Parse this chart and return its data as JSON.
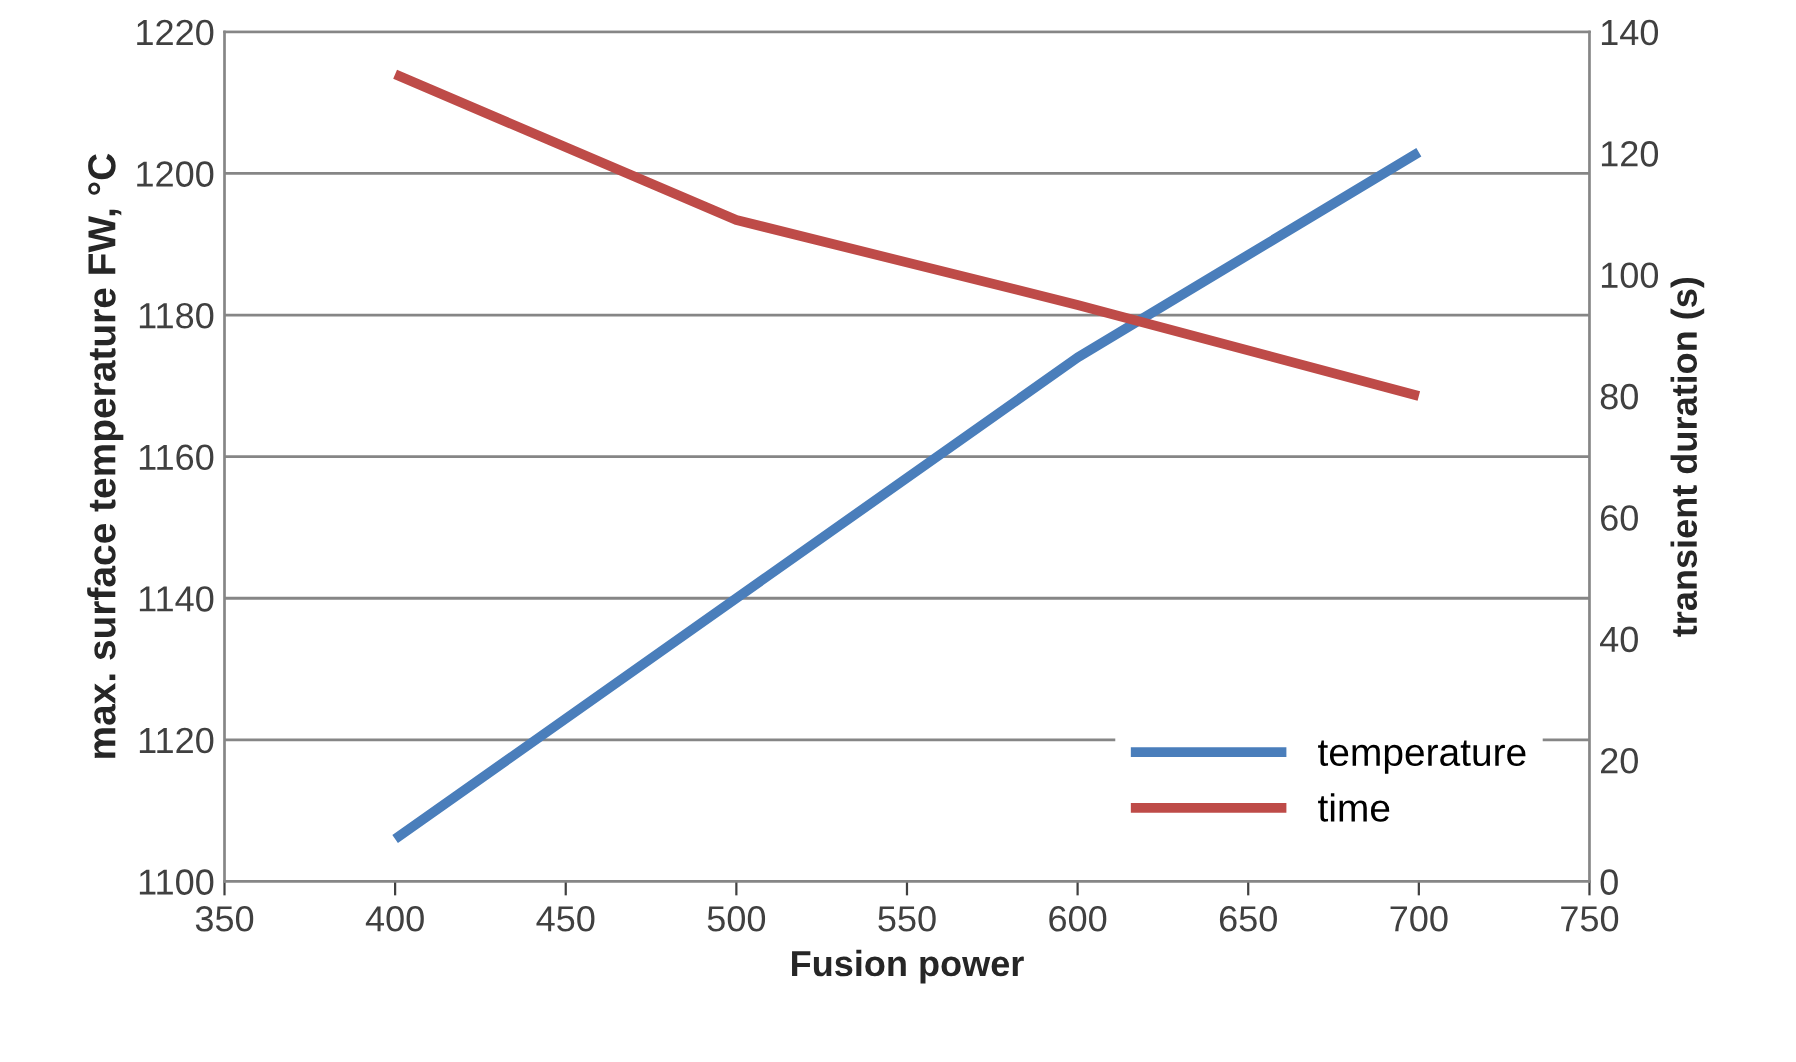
{
  "chart_data": {
    "type": "line",
    "xlabel": "Fusion power",
    "ylabel": "max. surface temperature FW, °C",
    "y2label": "transient duration (s)",
    "x": [
      400,
      500,
      600,
      700
    ],
    "series": [
      {
        "name": "temperature",
        "color": "#4a7ebb",
        "values": [
          1106,
          1140,
          1174,
          1203
        ]
      },
      {
        "name": "time",
        "color": "#be4b48",
        "values": [
          133,
          109,
          95,
          80
        ],
        "axis": "y2"
      }
    ],
    "xlim": [
      350,
      750
    ],
    "xticks": [
      350,
      400,
      450,
      500,
      550,
      600,
      650,
      700,
      750
    ],
    "ylim": [
      1100,
      1220
    ],
    "yticks": [
      1100,
      1120,
      1140,
      1160,
      1180,
      1200,
      1220
    ],
    "y2lim": [
      0,
      140
    ],
    "y2ticks": [
      0,
      20,
      40,
      60,
      80,
      100,
      120,
      140
    ],
    "grid": "y",
    "legend": "bottom right",
    "marker": "none",
    "line_style": "solid"
  }
}
